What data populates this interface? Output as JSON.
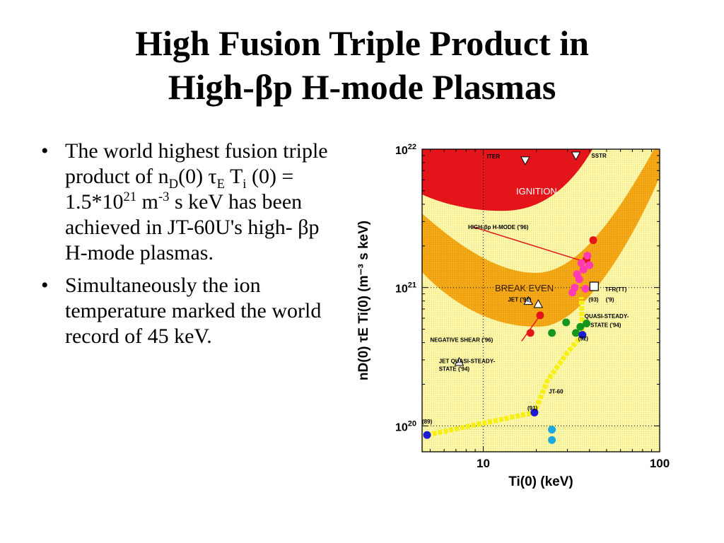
{
  "slide": {
    "title_line1": "High Fusion Triple Product in",
    "title_line2": "High-βp  H-mode Plasmas",
    "bullet1": {
      "t1": "The world highest fusion triple product of n",
      "sub1": "D",
      "t2": "(0) τ",
      "sub2": "E",
      "t3": "  T",
      "sub3": "i",
      "t4": " (0) = 1.5*10",
      "sup1": "21",
      "t5": " m",
      "sup2": "-3",
      "t6": " s keV has been achieved in JT-60U's high- βp H-mode plasmas."
    },
    "bullet2": "Simultaneously the ion temperature marked the world record of 45 keV.",
    "bullet_char": "•"
  },
  "chart_data": {
    "type": "scatter",
    "xlabel": "Ti(0) (keV)",
    "ylabel": "nD(0) τE Ti(0) (m⁻³ s keV)",
    "xscale": "log",
    "yscale": "log",
    "xlim": [
      4.5,
      100
    ],
    "ylim": [
      6.5e+19,
      1e+22
    ],
    "x_ticks": [
      "10",
      "100"
    ],
    "y_ticks": [
      {
        "base": "10",
        "exp": "20"
      },
      {
        "base": "10",
        "exp": "21"
      },
      {
        "base": "10",
        "exp": "22"
      }
    ],
    "regions": [
      {
        "name": "IGNITION",
        "color": "#e4141b"
      },
      {
        "name": "BREAK EVEN",
        "color": "#f2a20c"
      }
    ],
    "annotations": [
      {
        "text": "ITER",
        "x": 10.5,
        "y": 8.6e+21
      },
      {
        "text": "SSTR",
        "x": 41,
        "y": 8.7e+21
      },
      {
        "text": "HIGH-βp H-MODE ('96)",
        "x": 8.2,
        "y": 2.65e+21
      },
      {
        "text": "JET ('91)",
        "x": 13.8,
        "y": 7.9e+20
      },
      {
        "text": "(93)",
        "x": 39.5,
        "y": 7.9e+20
      },
      {
        "text": "TFR(TT)",
        "x": 49,
        "y": 9.4e+20
      },
      {
        "text": "('9)",
        "x": 49.5,
        "y": 7.9e+20
      },
      {
        "text": "QUASI-STEADY-",
        "x": 37.5,
        "y": 6e+20
      },
      {
        "text": "STATE ('94)",
        "x": 40.5,
        "y": 5.2e+20
      },
      {
        "text": "NEGATIVE SHEAR ('96)",
        "x": 5.0,
        "y": 4.05e+20
      },
      {
        "text": "(92)",
        "x": 34.5,
        "y": 4.15e+20
      },
      {
        "text": "JET QUASI-STEADY-",
        "x": 5.6,
        "y": 2.85e+20
      },
      {
        "text": "STATE ('94)",
        "x": 5.6,
        "y": 2.5e+20
      },
      {
        "text": "JT-60",
        "x": 23.5,
        "y": 1.72e+20
      },
      {
        "text": "(91)",
        "x": 17.8,
        "y": 1.3e+20
      },
      {
        "text": "(89)",
        "x": 4.5,
        "y": 1.04e+20
      }
    ],
    "series": [
      {
        "color": "#e4141b",
        "marker": "circle",
        "points": [
          [
            18.5,
            4.7e+20
          ],
          [
            21.0,
            6.3e+20
          ],
          [
            38.5,
            1.6e+21
          ],
          [
            42.0,
            2.2e+21
          ]
        ]
      },
      {
        "color": "#ff3cb4",
        "marker": "circle",
        "points": [
          [
            33,
            1e+21
          ],
          [
            35,
            1.15e+21
          ],
          [
            37,
            1.35e+21
          ],
          [
            36,
            1.5e+21
          ],
          [
            38,
            9.8e+20
          ],
          [
            34,
            1.25e+21
          ],
          [
            39,
            1.7e+21
          ],
          [
            32,
            9.2e+20
          ],
          [
            40,
            1.45e+21
          ]
        ]
      },
      {
        "color": "#15961e",
        "marker": "circle",
        "points": [
          [
            24.5,
            4.7e+20
          ],
          [
            29.5,
            5.6e+20
          ],
          [
            33.5,
            4.7e+20
          ],
          [
            35.5,
            5.2e+20
          ],
          [
            38.5,
            5.5e+20
          ]
        ]
      },
      {
        "color": "#1c1cd6",
        "marker": "circle",
        "points": [
          [
            4.8,
            8.6e+19
          ],
          [
            19.5,
            1.25e+20
          ],
          [
            36.5,
            4.55e+20
          ]
        ]
      },
      {
        "color": "#1ea8e0",
        "marker": "circle",
        "points": [
          [
            24.5,
            9.4e+19
          ],
          [
            24.5,
            7.9e+19
          ]
        ]
      },
      {
        "color": "#ffffff",
        "marker": "triangle-up",
        "points": [
          [
            18.0,
            8e+20
          ],
          [
            20.5,
            7.6e+20
          ],
          [
            7.3,
            2.9e+20
          ]
        ]
      },
      {
        "color": "#ffffff",
        "marker": "triangle-down",
        "points": [
          [
            17.3,
            8.3e+21
          ],
          [
            33.5,
            9e+21
          ]
        ]
      },
      {
        "color": "#ffffff",
        "marker": "square",
        "points": [
          [
            42.5,
            1.02e+21
          ]
        ]
      }
    ],
    "grid": "dotted at 10 keV and 10^21"
  }
}
